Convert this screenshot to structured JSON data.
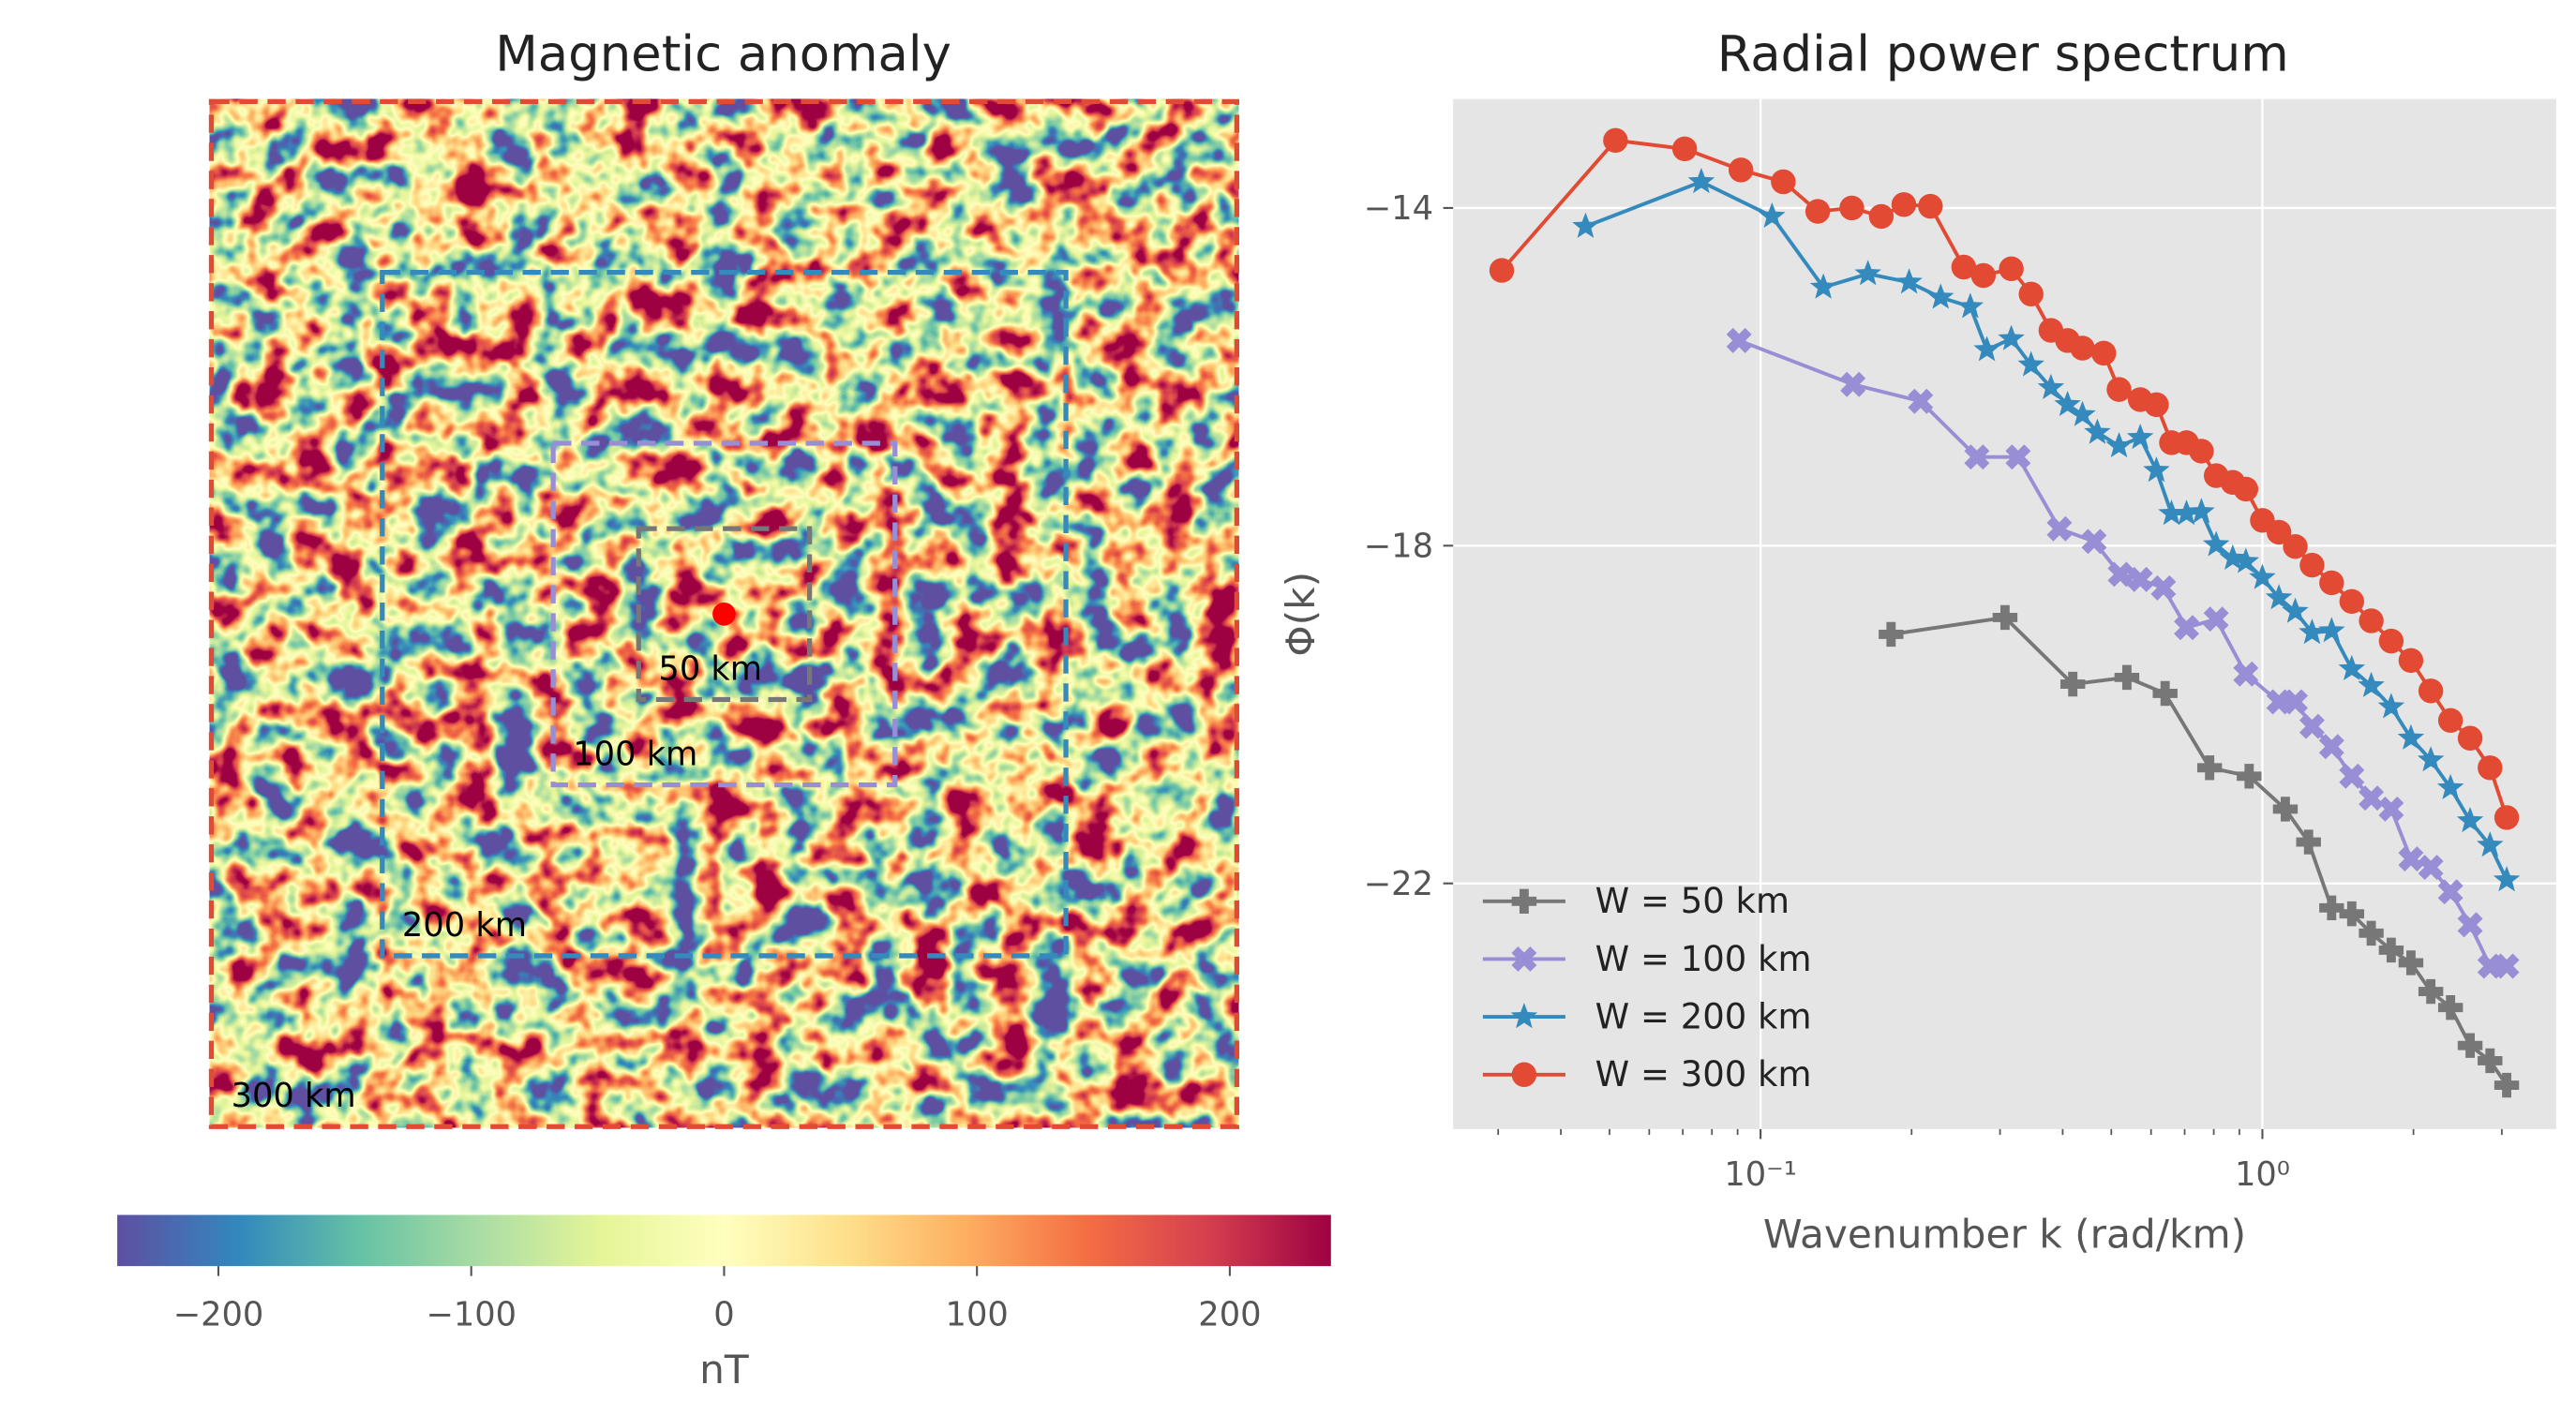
{
  "chart_data": [
    {
      "type": "image",
      "title": "Magnetic anomaly",
      "colorbar_label": "nT",
      "clim": [
        -240,
        240
      ],
      "cticks": [
        {
          "value": -200,
          "label": "−200"
        },
        {
          "value": -100,
          "label": "−100"
        },
        0,
        100,
        200
      ],
      "colormap": [
        "#5e4fa2",
        "#3288bd",
        "#66c2a5",
        "#abdda4",
        "#e6f598",
        "#ffffbf",
        "#fee08b",
        "#fdae61",
        "#f46d43",
        "#d53e4f",
        "#9e0142"
      ],
      "windows": [
        {
          "value": 50,
          "label": "50 km",
          "color": "#777777"
        },
        {
          "value": 100,
          "label": "100 km",
          "color": "#988ed5"
        },
        {
          "value": 200,
          "label": "200 km",
          "color": "#348abd"
        },
        {
          "value": 300,
          "label": "300 km",
          "color": "#e24a33"
        }
      ]
    },
    {
      "type": "line",
      "title": "Radial power spectrum",
      "xlabel": "Wavenumber k (rad/km)",
      "ylabel": "Φ(k)",
      "xscale": "log",
      "xlim": [
        0.0244,
        3.85
      ],
      "xticks": [
        {
          "value": 0.1,
          "label": "10⁻¹"
        },
        {
          "value": 1,
          "label": "10⁰"
        }
      ],
      "xminorticks": [
        0.03,
        0.04,
        0.05,
        0.06,
        0.07,
        0.08,
        0.09,
        0.2,
        0.3,
        0.4,
        0.5,
        0.6,
        0.7,
        0.8,
        0.9,
        2,
        3
      ],
      "ylim": [
        -24.91,
        -12.71
      ],
      "yticks": [
        {
          "value": -14,
          "label": "−14"
        },
        {
          "value": -18,
          "label": "−18"
        },
        {
          "value": -22,
          "label": "−22"
        }
      ],
      "grid": true,
      "legend": "lower left",
      "series": [
        {
          "name": "W = 50 km",
          "color": "#777777",
          "marker": "P",
          "x": [
            0.182,
            0.307,
            0.419,
            0.537,
            0.64,
            0.785,
            0.941,
            1.111,
            1.236,
            1.374,
            1.507,
            1.648,
            1.806,
            1.977,
            2.166,
            2.371,
            2.594,
            2.842,
            3.068
          ],
          "values": [
            -19.05,
            -18.85,
            -19.64,
            -19.56,
            -19.75,
            -20.63,
            -20.73,
            -21.12,
            -21.51,
            -22.29,
            -22.36,
            -22.59,
            -22.79,
            -22.94,
            -23.28,
            -23.47,
            -23.92,
            -24.1,
            -24.39
          ]
        },
        {
          "name": "W = 100 km",
          "color": "#988ed5",
          "marker": "X",
          "x": [
            0.0906,
            0.1528,
            0.2084,
            0.2698,
            0.326,
            0.394,
            0.462,
            0.521,
            0.571,
            0.635,
            0.706,
            0.809,
            0.927,
            1.079,
            1.163,
            1.256,
            1.374,
            1.507,
            1.648,
            1.806,
            1.977,
            2.166,
            2.371,
            2.594,
            2.842,
            3.068
          ],
          "values": [
            -15.57,
            -16.09,
            -16.29,
            -16.95,
            -16.95,
            -17.8,
            -17.95,
            -18.34,
            -18.4,
            -18.5,
            -18.97,
            -18.87,
            -19.52,
            -19.85,
            -19.85,
            -20.14,
            -20.38,
            -20.73,
            -20.99,
            -21.12,
            -21.71,
            -21.81,
            -22.1,
            -22.49,
            -22.98,
            -22.98
          ]
        },
        {
          "name": "W = 200 km",
          "color": "#348abd",
          "marker": "*",
          "x": [
            0.0448,
            0.0762,
            0.1054,
            0.1334,
            0.1637,
            0.1977,
            0.2285,
            0.2618,
            0.2825,
            0.316,
            0.346,
            0.379,
            0.409,
            0.438,
            0.469,
            0.518,
            0.571,
            0.615,
            0.659,
            0.706,
            0.756,
            0.809,
            0.873,
            0.927,
            1.0,
            1.079,
            1.163,
            1.256,
            1.374,
            1.507,
            1.648,
            1.806,
            1.977,
            2.166,
            2.371,
            2.594,
            2.842,
            3.068
          ],
          "values": [
            -14.22,
            -13.69,
            -14.1,
            -14.94,
            -14.78,
            -14.88,
            -15.06,
            -15.17,
            -15.68,
            -15.55,
            -15.86,
            -16.13,
            -16.33,
            -16.45,
            -16.66,
            -16.82,
            -16.72,
            -17.11,
            -17.62,
            -17.62,
            -17.6,
            -17.99,
            -18.15,
            -18.19,
            -18.38,
            -18.62,
            -18.78,
            -19.03,
            -19.01,
            -19.46,
            -19.66,
            -19.91,
            -20.28,
            -20.54,
            -20.87,
            -21.26,
            -21.55,
            -21.96
          ]
        },
        {
          "name": "W = 300 km",
          "color": "#e24a33",
          "marker": "o",
          "x": [
            0.0305,
            0.0514,
            0.0706,
            0.0914,
            0.111,
            0.13,
            0.152,
            0.174,
            0.193,
            0.218,
            0.254,
            0.278,
            0.316,
            0.346,
            0.379,
            0.409,
            0.438,
            0.483,
            0.518,
            0.571,
            0.615,
            0.659,
            0.706,
            0.756,
            0.809,
            0.873,
            0.927,
            1.0,
            1.079,
            1.163,
            1.256,
            1.374,
            1.507,
            1.648,
            1.806,
            1.977,
            2.166,
            2.371,
            2.594,
            2.842,
            3.068
          ],
          "values": [
            -14.74,
            -13.2,
            -13.3,
            -13.55,
            -13.69,
            -14.04,
            -14.0,
            -14.1,
            -13.96,
            -13.98,
            -14.7,
            -14.8,
            -14.72,
            -15.02,
            -15.45,
            -15.57,
            -15.66,
            -15.72,
            -16.15,
            -16.27,
            -16.33,
            -16.78,
            -16.78,
            -16.88,
            -17.17,
            -17.25,
            -17.33,
            -17.7,
            -17.84,
            -18.01,
            -18.23,
            -18.44,
            -18.66,
            -18.89,
            -19.13,
            -19.36,
            -19.72,
            -20.07,
            -20.28,
            -20.63,
            -21.22
          ]
        }
      ]
    }
  ]
}
